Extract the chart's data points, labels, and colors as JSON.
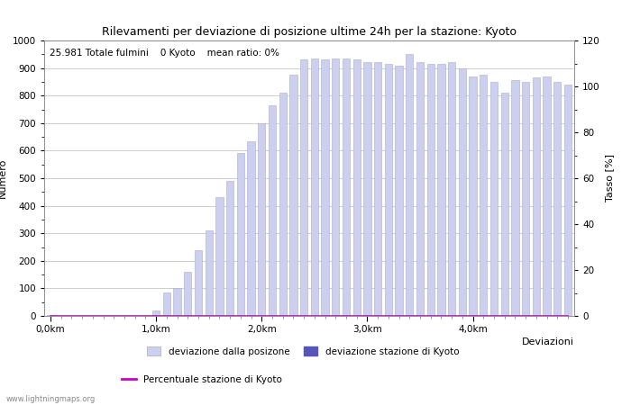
{
  "title": "Rilevamenti per deviazione di posizione ultime 24h per la stazione: Kyoto",
  "ylabel_left": "Numero",
  "ylabel_right": "Tasso [%]",
  "xlabel": "Deviazioni",
  "annotation": "25.981 Totale fulmini    0 Kyoto    mean ratio: 0%",
  "watermark": "www.lightningmaps.org",
  "bar_values": [
    2,
    0,
    0,
    0,
    0,
    0,
    0,
    0,
    0,
    0,
    20,
    85,
    100,
    160,
    240,
    310,
    430,
    490,
    590,
    635,
    700,
    765,
    810,
    875,
    930,
    935,
    930,
    935,
    935,
    930,
    920,
    920,
    915,
    910,
    950,
    920,
    915,
    915,
    920,
    900,
    870,
    875,
    850,
    810,
    855,
    850,
    865,
    870,
    850,
    840
  ],
  "kyoto_values": [
    0,
    0,
    0,
    0,
    0,
    0,
    0,
    0,
    0,
    0,
    0,
    0,
    0,
    0,
    0,
    0,
    0,
    0,
    0,
    0,
    0,
    0,
    0,
    0,
    0,
    0,
    0,
    0,
    0,
    0,
    0,
    0,
    0,
    0,
    0,
    0,
    0,
    0,
    0,
    0,
    0,
    0,
    0,
    0,
    0,
    0,
    0,
    0,
    0,
    0
  ],
  "n_bars": 50,
  "ylim_left": [
    0,
    1000
  ],
  "ylim_right": [
    0,
    120
  ],
  "xtick_positions": [
    0,
    10,
    20,
    30,
    40
  ],
  "xtick_labels": [
    "0,0km",
    "1,0km",
    "2,0km",
    "3,0km",
    "4,0km"
  ],
  "ytick_left": [
    0,
    100,
    200,
    300,
    400,
    500,
    600,
    700,
    800,
    900,
    1000
  ],
  "ytick_right": [
    0,
    20,
    40,
    60,
    80,
    100,
    120
  ],
  "bar_color": "#ccd0ee",
  "bar_edge_color": "#aaaacc",
  "kyoto_bar_color": "#5555bb",
  "line_color": "#cc00cc",
  "bg_color": "#ffffff",
  "grid_color": "#bbbbbb",
  "title_fontsize": 9,
  "label_fontsize": 8,
  "annotation_fontsize": 7.5,
  "tick_fontsize": 7.5,
  "legend_fontsize": 7.5
}
